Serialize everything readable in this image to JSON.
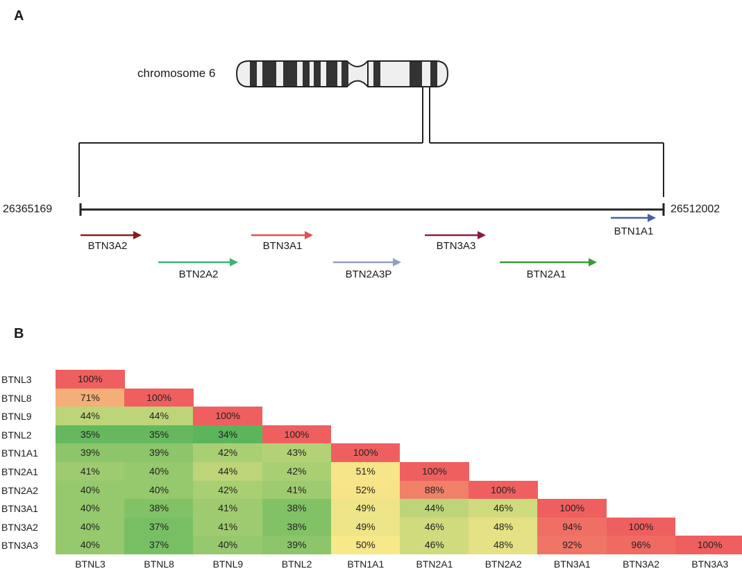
{
  "panels": {
    "a": "A",
    "b": "B"
  },
  "locus": {
    "chromosome_label": "chromosome 6",
    "start_coord": "26365169",
    "end_coord": "26512002",
    "genes": [
      {
        "name": "BTN3A2",
        "color": "#8b1a1a"
      },
      {
        "name": "BTN2A2",
        "color": "#3cb371"
      },
      {
        "name": "BTN3A1",
        "color": "#e05050"
      },
      {
        "name": "BTN2A3P",
        "color": "#8f9fc4"
      },
      {
        "name": "BTN3A3",
        "color": "#8b1a4a"
      },
      {
        "name": "BTN2A1",
        "color": "#3a9a3a"
      },
      {
        "name": "BTN1A1",
        "color": "#4a5fa8"
      }
    ]
  },
  "chart_data": {
    "type": "heatmap",
    "rows": [
      "BTNL3",
      "BTNL8",
      "BTNL9",
      "BTNL2",
      "BTN1A1",
      "BTN2A1",
      "BTN2A2",
      "BTN3A1",
      "BTN3A2",
      "BTN3A3"
    ],
    "columns": [
      "BTNL3",
      "BTNL8",
      "BTNL9",
      "BTNL2",
      "BTN1A1",
      "BTN2A1",
      "BTN2A2",
      "BTN3A1",
      "BTN3A2",
      "BTN3A3"
    ],
    "values": [
      [
        100
      ],
      [
        71,
        100
      ],
      [
        44,
        44,
        100
      ],
      [
        35,
        35,
        34,
        100
      ],
      [
        39,
        39,
        42,
        43,
        100
      ],
      [
        41,
        40,
        44,
        42,
        51,
        100
      ],
      [
        40,
        40,
        42,
        41,
        52,
        88,
        100
      ],
      [
        40,
        38,
        41,
        38,
        49,
        44,
        46,
        100
      ],
      [
        40,
        37,
        41,
        38,
        49,
        46,
        48,
        94,
        100
      ],
      [
        40,
        37,
        40,
        39,
        50,
        46,
        48,
        92,
        96,
        100
      ]
    ],
    "unit": "%",
    "color_scale": {
      "low": "#5bb55b",
      "mid": "#f7e88a",
      "high": "#ef5f5f"
    }
  }
}
